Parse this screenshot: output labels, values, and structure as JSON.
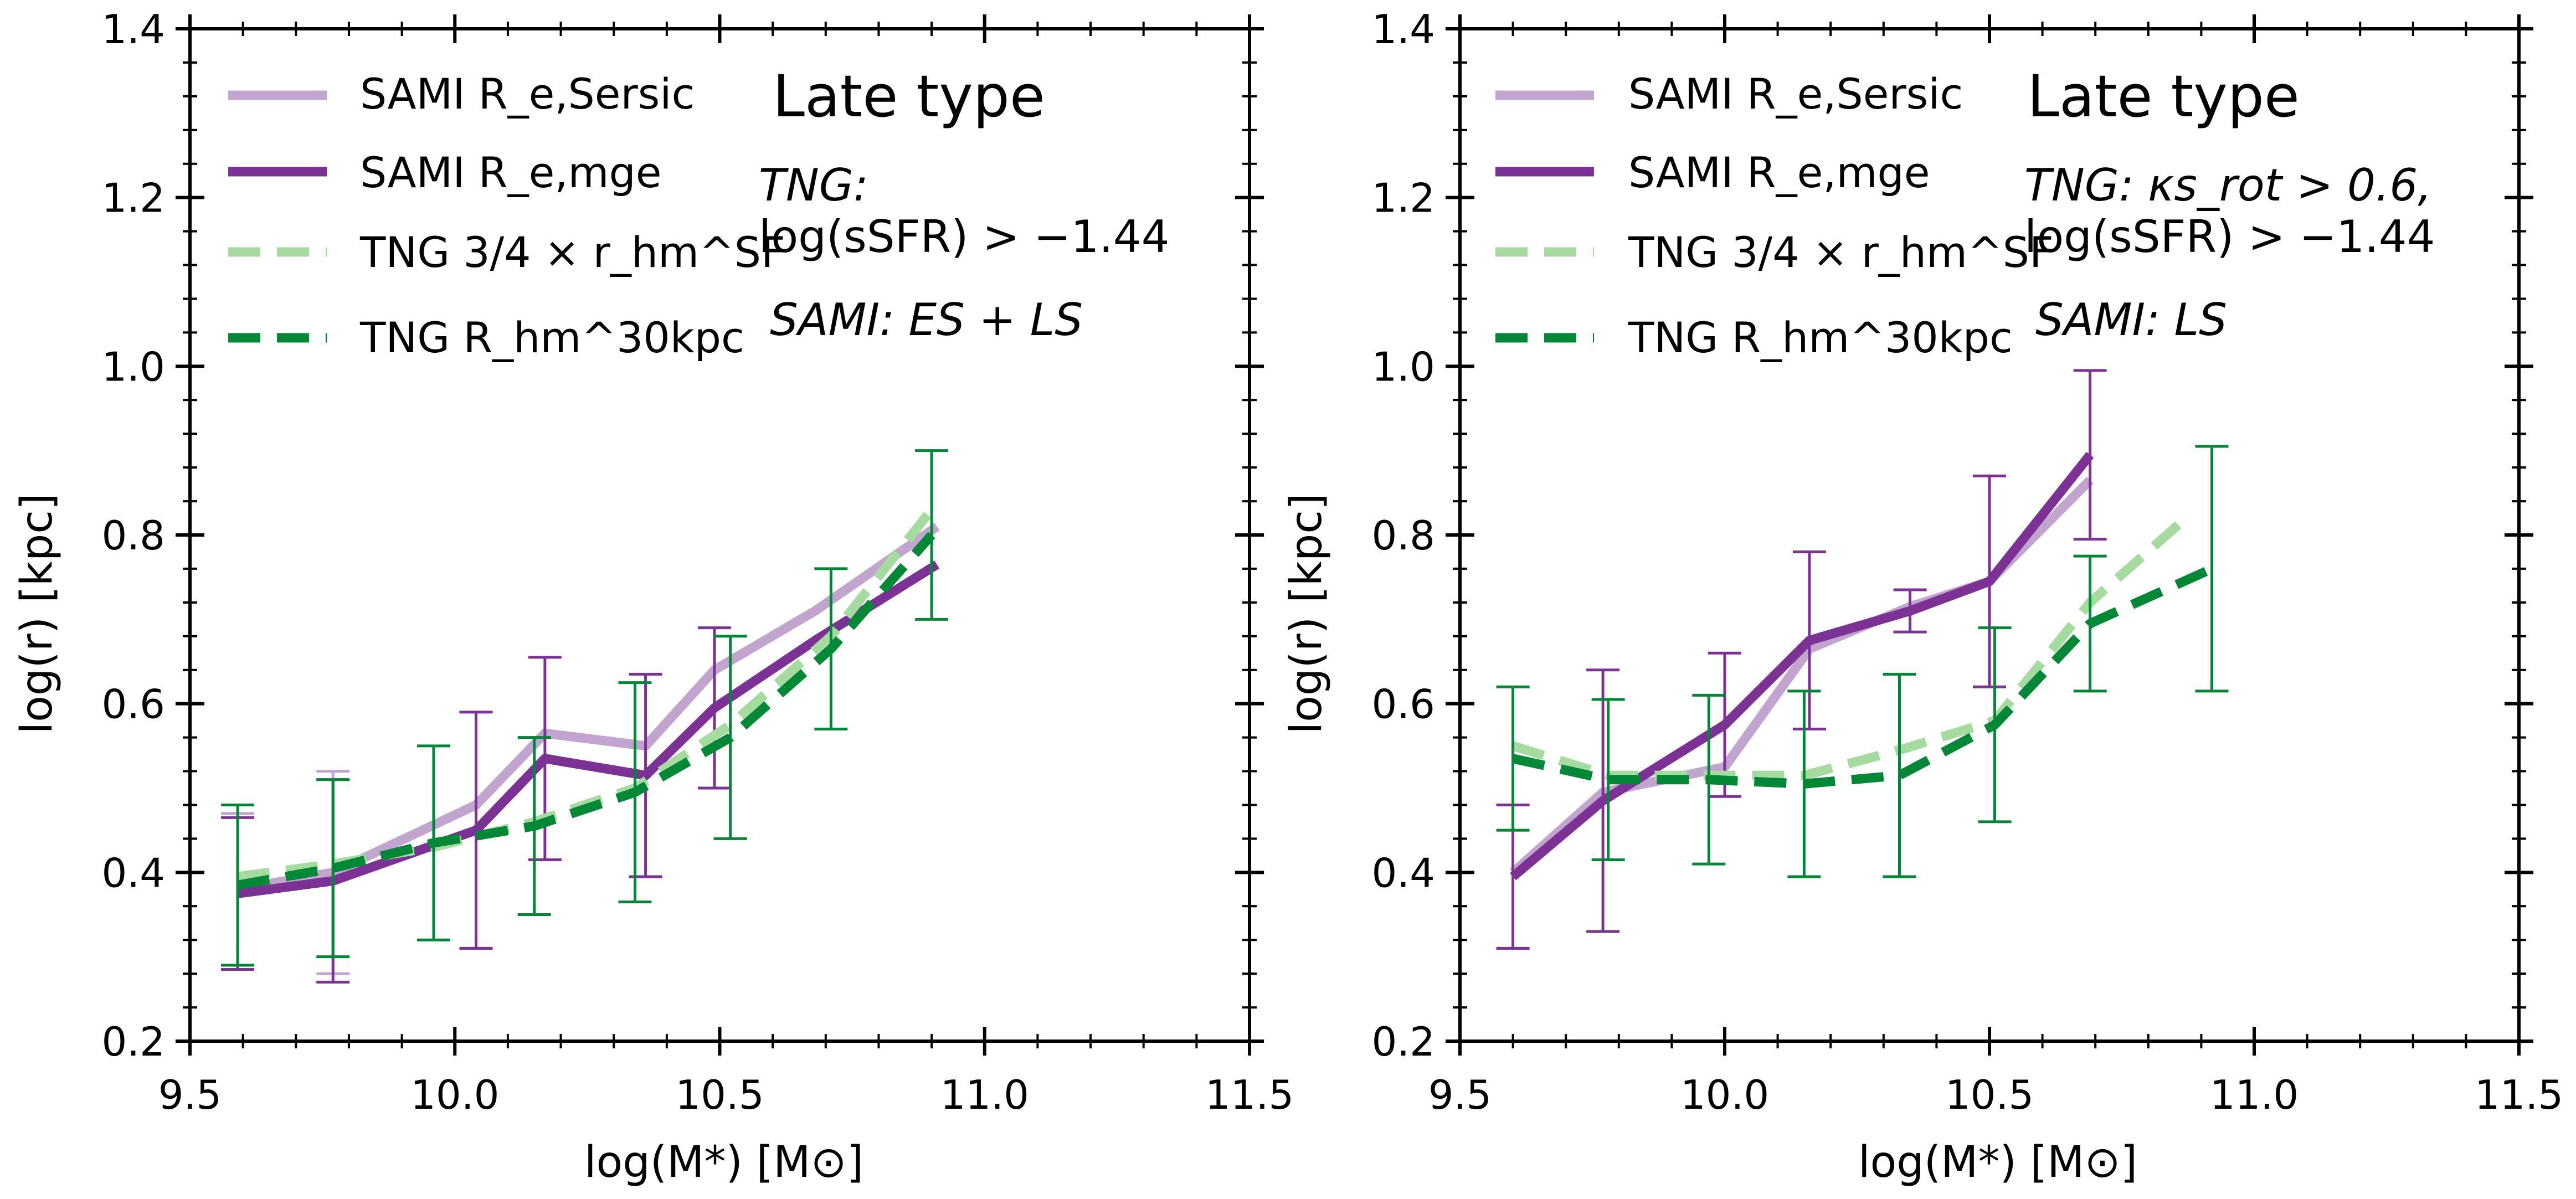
{
  "chart_data": [
    {
      "type": "line",
      "title": "Late type",
      "annotations": [
        "TNG:",
        "log(sSFR) > −1.44",
        "SAMI: ES + LS"
      ],
      "xlabel": "log(M*) [M⊙]",
      "ylabel": "log(r) [kpc]",
      "xlim": [
        9.5,
        11.5
      ],
      "ylim": [
        0.2,
        1.4
      ],
      "xticks": [
        "9.5",
        "10.0",
        "10.5",
        "11.0",
        "11.5"
      ],
      "yticks": [
        "0.2",
        "0.4",
        "0.6",
        "0.8",
        "1.0",
        "1.2",
        "1.4"
      ],
      "grid": false,
      "legend_position": "top-left",
      "series": [
        {
          "name": "SAMI R_e,Sersic",
          "color": "#c2a5cf",
          "style": "solid",
          "x": [
            9.59,
            9.77,
            10.04,
            10.17,
            10.36,
            10.49,
            10.68,
            10.91
          ],
          "y": [
            0.38,
            0.4,
            0.48,
            0.565,
            0.55,
            0.64,
            0.71,
            0.81
          ],
          "yerr": [
            0.09,
            0.12,
            0.0,
            0.0,
            0.0,
            0.0,
            0.0,
            0.0
          ]
        },
        {
          "name": "SAMI R_e,mge",
          "color": "#7b3294",
          "style": "solid",
          "x": [
            9.59,
            9.77,
            10.04,
            10.17,
            10.36,
            10.49,
            10.68,
            10.91
          ],
          "y": [
            0.375,
            0.39,
            0.45,
            0.535,
            0.515,
            0.595,
            0.675,
            0.765
          ],
          "yerr": [
            0.09,
            0.12,
            0.14,
            0.12,
            0.12,
            0.095,
            0.0,
            0.0
          ]
        },
        {
          "name": "TNG 3/4 × r_hm^SF",
          "color": "#a6dba0",
          "style": "dashed",
          "x": [
            9.59,
            9.77,
            9.96,
            10.15,
            10.34,
            10.52,
            10.71,
            10.9
          ],
          "y": [
            0.395,
            0.41,
            0.43,
            0.46,
            0.5,
            0.575,
            0.68,
            0.83
          ],
          "yerr": [
            0.0,
            0.0,
            0.0,
            0.0,
            0.0,
            0.0,
            0.0,
            0.0
          ]
        },
        {
          "name": "TNG R_hm^30kpc",
          "color": "#008837",
          "style": "dashed",
          "x": [
            9.59,
            9.77,
            9.96,
            10.15,
            10.34,
            10.52,
            10.71,
            10.9
          ],
          "y": [
            0.385,
            0.405,
            0.435,
            0.455,
            0.495,
            0.56,
            0.665,
            0.8
          ],
          "yerr": [
            0.095,
            0.105,
            0.115,
            0.105,
            0.13,
            0.12,
            0.095,
            0.1
          ]
        }
      ]
    },
    {
      "type": "line",
      "title": "Late type",
      "annotations": [
        "TNG: κs_rot > 0.6,",
        "log(sSFR) > −1.44",
        "SAMI: LS"
      ],
      "xlabel": "log(M*) [M⊙]",
      "ylabel": "log(r) [kpc]",
      "xlim": [
        9.5,
        11.5
      ],
      "ylim": [
        0.2,
        1.4
      ],
      "xticks": [
        "9.5",
        "10.0",
        "10.5",
        "11.0",
        "11.5"
      ],
      "yticks": [
        "0.2",
        "0.4",
        "0.6",
        "0.8",
        "1.0",
        "1.2",
        "1.4"
      ],
      "grid": false,
      "legend_position": "top-left",
      "series": [
        {
          "name": "SAMI R_e,Sersic",
          "color": "#c2a5cf",
          "style": "solid",
          "x": [
            9.6,
            9.77,
            10.0,
            10.16,
            10.35,
            10.5,
            10.69
          ],
          "y": [
            0.4,
            0.495,
            0.525,
            0.665,
            0.715,
            0.745,
            0.865
          ],
          "yerr": [
            0.0,
            0.0,
            0.0,
            0.0,
            0.0,
            0.0,
            0.0
          ]
        },
        {
          "name": "SAMI R_e,mge",
          "color": "#7b3294",
          "style": "solid",
          "x": [
            9.6,
            9.77,
            10.0,
            10.16,
            10.35,
            10.5,
            10.69
          ],
          "y": [
            0.395,
            0.485,
            0.575,
            0.675,
            0.71,
            0.745,
            0.895
          ],
          "yerr": [
            0.085,
            0.155,
            0.085,
            0.105,
            0.025,
            0.125,
            0.1
          ]
        },
        {
          "name": "TNG 3/4 × r_hm^SF",
          "color": "#a6dba0",
          "style": "dashed",
          "x": [
            9.6,
            9.78,
            9.97,
            10.15,
            10.33,
            10.51,
            10.69,
            10.88
          ],
          "y": [
            0.55,
            0.515,
            0.515,
            0.515,
            0.545,
            0.58,
            0.72,
            0.825
          ],
          "yerr": [
            0.0,
            0.0,
            0.0,
            0.0,
            0.0,
            0.0,
            0.0,
            0.0
          ]
        },
        {
          "name": "TNG R_hm^30kpc",
          "color": "#008837",
          "style": "dashed",
          "x": [
            9.6,
            9.78,
            9.97,
            10.15,
            10.33,
            10.51,
            10.69,
            10.92
          ],
          "y": [
            0.535,
            0.51,
            0.51,
            0.505,
            0.515,
            0.575,
            0.695,
            0.76
          ],
          "yerr": [
            0.085,
            0.095,
            0.1,
            0.11,
            0.12,
            0.115,
            0.08,
            0.145
          ]
        }
      ]
    }
  ]
}
